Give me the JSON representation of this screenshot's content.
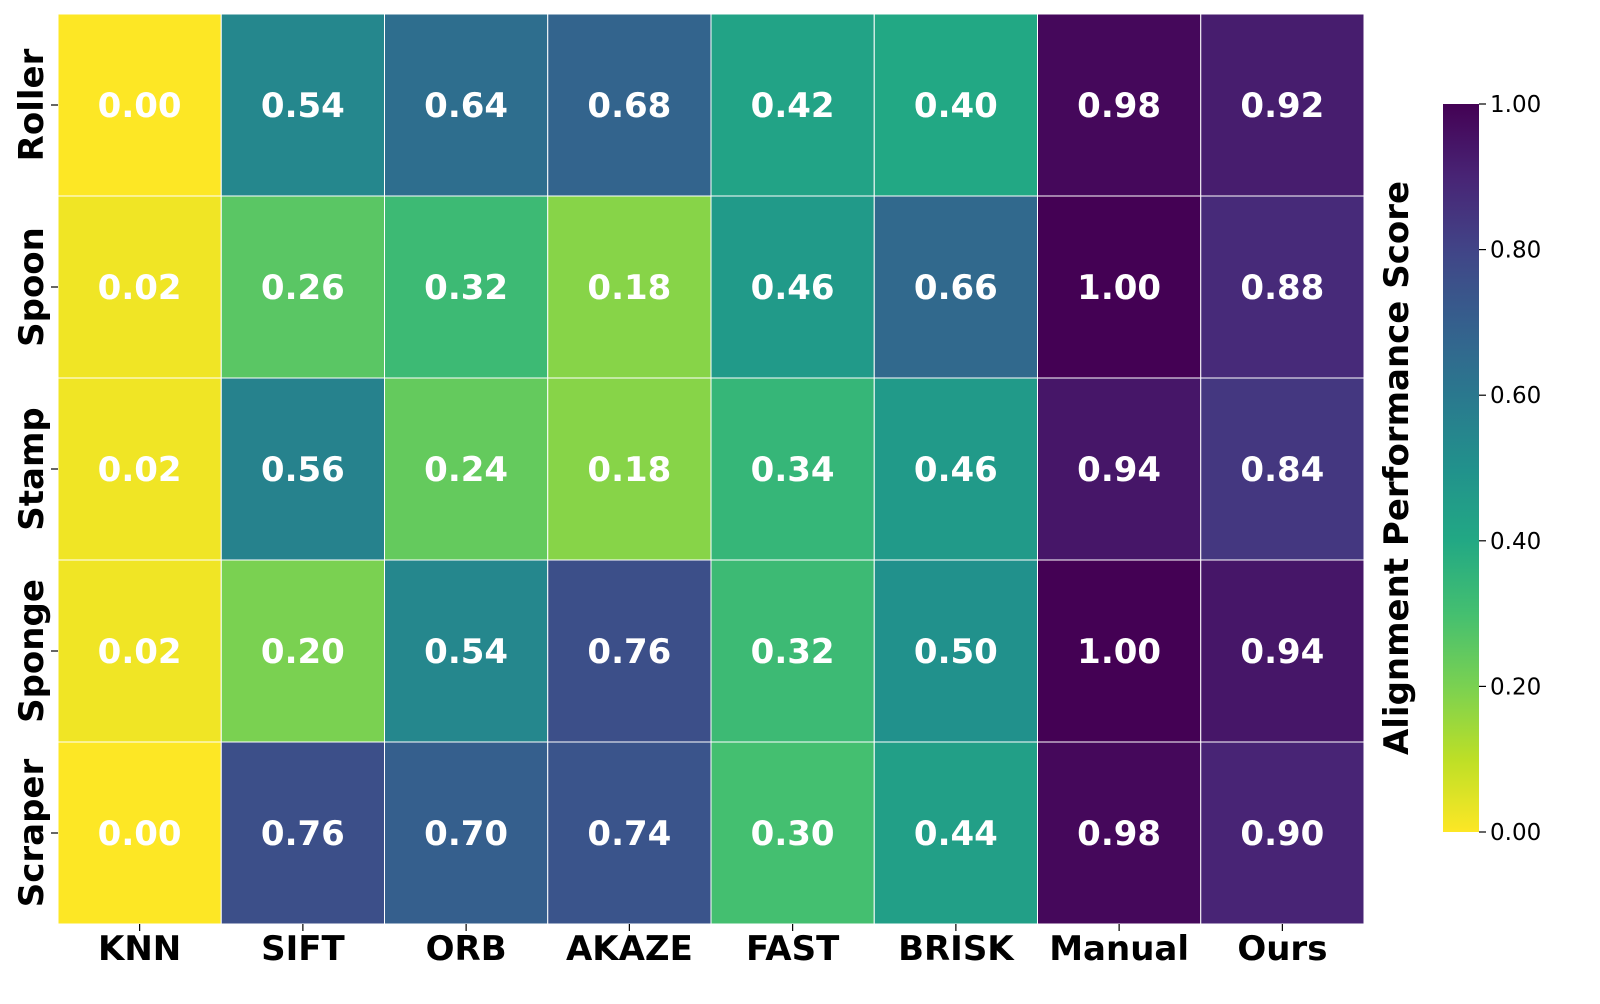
{
  "chart_data": {
    "type": "heatmap",
    "title": "",
    "xlabel": "",
    "ylabel": "",
    "columns": [
      "KNN",
      "SIFT",
      "ORB",
      "AKAZE",
      "FAST",
      "BRISK",
      "Manual",
      "Ours"
    ],
    "rows": [
      "Roller",
      "Spoon",
      "Stamp",
      "Sponge",
      "Scraper"
    ],
    "values": [
      [
        0.0,
        0.54,
        0.64,
        0.68,
        0.42,
        0.4,
        0.98,
        0.92
      ],
      [
        0.02,
        0.26,
        0.32,
        0.18,
        0.46,
        0.66,
        1.0,
        0.88
      ],
      [
        0.02,
        0.56,
        0.24,
        0.18,
        0.34,
        0.46,
        0.94,
        0.84
      ],
      [
        0.02,
        0.2,
        0.54,
        0.76,
        0.32,
        0.5,
        1.0,
        0.94
      ],
      [
        0.0,
        0.76,
        0.7,
        0.74,
        0.3,
        0.44,
        0.98,
        0.9
      ]
    ],
    "value_format": "2 decimals",
    "colormap": "viridis_r",
    "vmin": 0.0,
    "vmax": 1.0,
    "colorbar": {
      "label": "Alignment Performance Score",
      "ticks": [
        0.0,
        0.2,
        0.4,
        0.6,
        0.8,
        1.0
      ],
      "tick_labels": [
        "0.00",
        "0.20",
        "0.40",
        "0.60",
        "0.80",
        "1.00"
      ],
      "placement": "right"
    },
    "annotation_color": "#ffffff",
    "grid_line_color": "#ffffff"
  }
}
